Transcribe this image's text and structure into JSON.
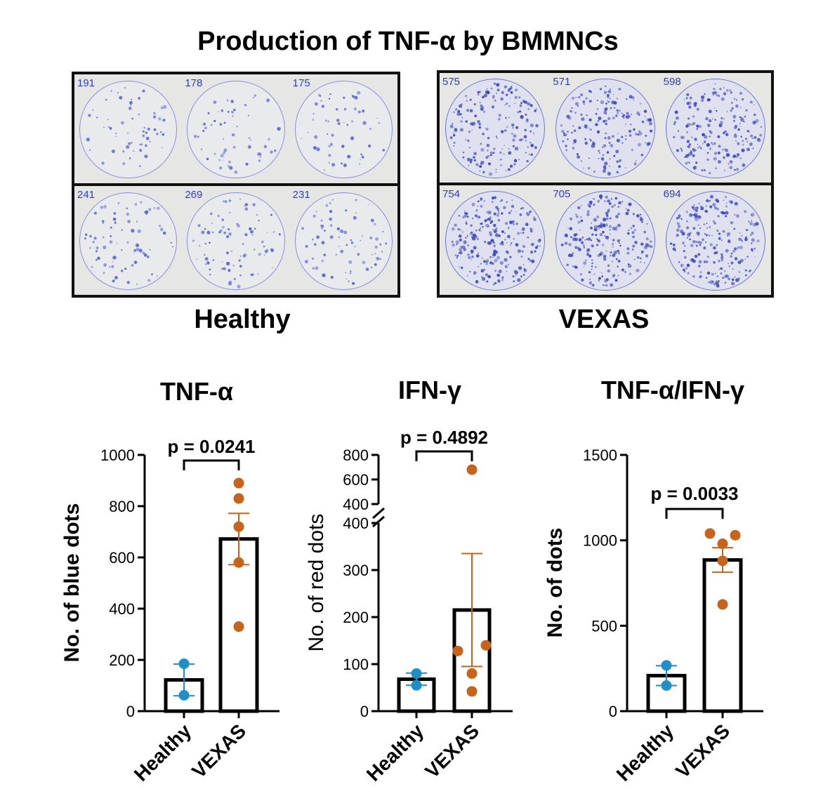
{
  "figure": {
    "title": "Production of TNF-α by BMMNCs"
  },
  "plates": [
    {
      "group_label": "Healthy",
      "top_counts": [
        "191",
        "178",
        "175"
      ],
      "bottom_counts": [
        "241",
        "269",
        "231"
      ],
      "spot_color": "#5060d8",
      "ring_color": "#8a90e0",
      "background": "#e9eaec"
    },
    {
      "group_label": "VEXAS",
      "top_counts": [
        "575",
        "571",
        "598"
      ],
      "bottom_counts": [
        "754",
        "705",
        "694"
      ],
      "spot_color": "#3a44c0",
      "ring_color": "#6f78d8",
      "background": "#dfe2ee"
    }
  ],
  "chart_data": [
    {
      "type": "bar",
      "title": "TNF-α",
      "ylabel": "No. of blue dots",
      "categories": [
        "Healthy",
        "VEXAS"
      ],
      "values": [
        122,
        672
      ],
      "errors": [
        62,
        100
      ],
      "points": [
        [
          185,
          62
        ],
        [
          890,
          830,
          720,
          580,
          330
        ]
      ],
      "ylim": [
        0,
        1000
      ],
      "yticks": [
        0,
        200,
        400,
        600,
        800,
        1000
      ],
      "pvalue": "p = 0.0241",
      "colors": [
        "#1f8fc8",
        "#c8631c"
      ]
    },
    {
      "type": "bar",
      "title": "IFN-γ",
      "ylabel": "No. of red dots",
      "categories": [
        "Healthy",
        "VEXAS"
      ],
      "values": [
        68,
        215
      ],
      "errors": [
        13,
        120
      ],
      "points": [
        [
          80,
          55
        ],
        [
          680,
          140,
          128,
          80,
          42
        ]
      ],
      "ylim": [
        0,
        800
      ],
      "yticks_lower": [
        0,
        100,
        200,
        300,
        400
      ],
      "yticks_upper": [
        400,
        600,
        800
      ],
      "axis_break": [
        400,
        400
      ],
      "pvalue": "p = 0.4892",
      "colors": [
        "#1f8fc8",
        "#c8631c"
      ]
    },
    {
      "type": "bar",
      "title": "TNF-α/IFN-γ",
      "ylabel": "No. of dots",
      "categories": [
        "Healthy",
        "VEXAS"
      ],
      "values": [
        208,
        885
      ],
      "errors": [
        58,
        72
      ],
      "points": [
        [
          268,
          150
        ],
        [
          1040,
          1030,
          980,
          880,
          625
        ]
      ],
      "ylim": [
        0,
        1500
      ],
      "yticks": [
        0,
        500,
        1000,
        1500
      ],
      "pvalue": "p = 0.0033",
      "colors": [
        "#1f8fc8",
        "#c8631c"
      ]
    }
  ]
}
